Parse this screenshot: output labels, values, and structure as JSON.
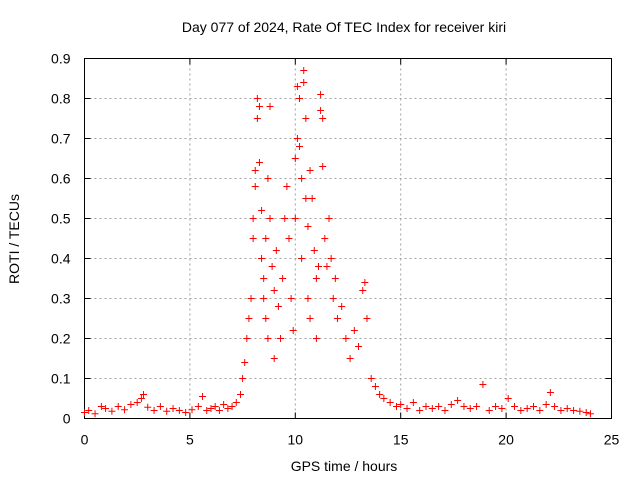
{
  "chart_data": {
    "type": "scatter",
    "title": "Day 077 of 2024, Rate Of TEC Index for receiver kiri",
    "xlabel": "GPS time / hours",
    "ylabel": "ROTI / TECUs",
    "xlim": [
      0,
      25
    ],
    "ylim": [
      0,
      0.9
    ],
    "xticks": [
      0,
      5,
      10,
      15,
      20,
      25
    ],
    "xtick_labels": [
      "0",
      "5",
      "10",
      "15",
      "20",
      "25"
    ],
    "yticks": [
      0,
      0.1,
      0.2,
      0.3,
      0.4,
      0.5,
      0.6,
      0.7,
      0.8,
      0.9
    ],
    "ytick_labels": [
      "0",
      "0.1",
      "0.2",
      "0.3",
      "0.4",
      "0.5",
      "0.6",
      "0.7",
      "0.8",
      "0.9"
    ],
    "grid": true,
    "marker": "+",
    "color": "#ff0000",
    "series": [
      {
        "name": "ROTI",
        "points": [
          [
            0.0,
            0.015
          ],
          [
            0.2,
            0.02
          ],
          [
            0.5,
            0.012
          ],
          [
            0.8,
            0.03
          ],
          [
            1.0,
            0.025
          ],
          [
            1.3,
            0.018
          ],
          [
            1.6,
            0.03
          ],
          [
            1.9,
            0.022
          ],
          [
            2.2,
            0.035
          ],
          [
            2.5,
            0.04
          ],
          [
            2.7,
            0.05
          ],
          [
            2.8,
            0.06
          ],
          [
            3.0,
            0.028
          ],
          [
            3.3,
            0.02
          ],
          [
            3.6,
            0.03
          ],
          [
            3.9,
            0.018
          ],
          [
            4.2,
            0.025
          ],
          [
            4.5,
            0.02
          ],
          [
            4.8,
            0.015
          ],
          [
            5.1,
            0.022
          ],
          [
            5.4,
            0.03
          ],
          [
            5.6,
            0.055
          ],
          [
            5.8,
            0.02
          ],
          [
            6.0,
            0.025
          ],
          [
            6.2,
            0.03
          ],
          [
            6.4,
            0.02
          ],
          [
            6.6,
            0.035
          ],
          [
            6.8,
            0.025
          ],
          [
            7.0,
            0.03
          ],
          [
            7.2,
            0.04
          ],
          [
            7.4,
            0.06
          ],
          [
            7.5,
            0.1
          ],
          [
            7.6,
            0.14
          ],
          [
            7.7,
            0.2
          ],
          [
            7.8,
            0.25
          ],
          [
            7.9,
            0.3
          ],
          [
            8.0,
            0.5
          ],
          [
            8.0,
            0.45
          ],
          [
            8.1,
            0.62
          ],
          [
            8.1,
            0.58
          ],
          [
            8.2,
            0.8
          ],
          [
            8.2,
            0.75
          ],
          [
            8.3,
            0.78
          ],
          [
            8.3,
            0.64
          ],
          [
            8.4,
            0.52
          ],
          [
            8.4,
            0.4
          ],
          [
            8.5,
            0.35
          ],
          [
            8.5,
            0.3
          ],
          [
            8.6,
            0.45
          ],
          [
            8.6,
            0.25
          ],
          [
            8.7,
            0.6
          ],
          [
            8.7,
            0.2
          ],
          [
            8.8,
            0.78
          ],
          [
            8.8,
            0.5
          ],
          [
            8.9,
            0.38
          ],
          [
            9.0,
            0.32
          ],
          [
            9.0,
            0.15
          ],
          [
            9.1,
            0.42
          ],
          [
            9.2,
            0.28
          ],
          [
            9.3,
            0.2
          ],
          [
            9.4,
            0.35
          ],
          [
            9.5,
            0.5
          ],
          [
            9.6,
            0.58
          ],
          [
            9.7,
            0.45
          ],
          [
            9.8,
            0.3
          ],
          [
            9.9,
            0.22
          ],
          [
            10.0,
            0.65
          ],
          [
            10.0,
            0.5
          ],
          [
            10.1,
            0.83
          ],
          [
            10.1,
            0.7
          ],
          [
            10.2,
            0.68
          ],
          [
            10.2,
            0.8
          ],
          [
            10.3,
            0.6
          ],
          [
            10.3,
            0.4
          ],
          [
            10.4,
            0.87
          ],
          [
            10.4,
            0.84
          ],
          [
            10.5,
            0.75
          ],
          [
            10.5,
            0.55
          ],
          [
            10.6,
            0.48
          ],
          [
            10.6,
            0.3
          ],
          [
            10.7,
            0.62
          ],
          [
            10.7,
            0.25
          ],
          [
            10.8,
            0.55
          ],
          [
            10.9,
            0.42
          ],
          [
            11.0,
            0.35
          ],
          [
            11.0,
            0.2
          ],
          [
            11.1,
            0.38
          ],
          [
            11.2,
            0.81
          ],
          [
            11.2,
            0.77
          ],
          [
            11.3,
            0.75
          ],
          [
            11.3,
            0.63
          ],
          [
            11.4,
            0.45
          ],
          [
            11.5,
            0.38
          ],
          [
            11.6,
            0.5
          ],
          [
            11.7,
            0.4
          ],
          [
            11.8,
            0.3
          ],
          [
            11.9,
            0.35
          ],
          [
            12.0,
            0.25
          ],
          [
            12.2,
            0.28
          ],
          [
            12.4,
            0.2
          ],
          [
            12.6,
            0.15
          ],
          [
            12.8,
            0.22
          ],
          [
            13.0,
            0.18
          ],
          [
            13.2,
            0.32
          ],
          [
            13.3,
            0.34
          ],
          [
            13.4,
            0.25
          ],
          [
            13.6,
            0.1
          ],
          [
            13.8,
            0.08
          ],
          [
            14.0,
            0.06
          ],
          [
            14.2,
            0.05
          ],
          [
            14.5,
            0.04
          ],
          [
            14.8,
            0.03
          ],
          [
            15.0,
            0.035
          ],
          [
            15.3,
            0.025
          ],
          [
            15.6,
            0.04
          ],
          [
            15.9,
            0.02
          ],
          [
            16.2,
            0.03
          ],
          [
            16.5,
            0.025
          ],
          [
            16.8,
            0.03
          ],
          [
            17.1,
            0.02
          ],
          [
            17.4,
            0.035
          ],
          [
            17.7,
            0.045
          ],
          [
            18.0,
            0.03
          ],
          [
            18.3,
            0.025
          ],
          [
            18.6,
            0.03
          ],
          [
            18.9,
            0.085
          ],
          [
            19.2,
            0.02
          ],
          [
            19.5,
            0.03
          ],
          [
            19.8,
            0.025
          ],
          [
            20.1,
            0.05
          ],
          [
            20.4,
            0.03
          ],
          [
            20.7,
            0.02
          ],
          [
            21.0,
            0.025
          ],
          [
            21.3,
            0.03
          ],
          [
            21.6,
            0.02
          ],
          [
            21.9,
            0.035
          ],
          [
            22.1,
            0.065
          ],
          [
            22.3,
            0.03
          ],
          [
            22.6,
            0.02
          ],
          [
            22.9,
            0.025
          ],
          [
            23.2,
            0.02
          ],
          [
            23.5,
            0.018
          ],
          [
            23.8,
            0.015
          ],
          [
            24.0,
            0.012
          ]
        ]
      }
    ]
  }
}
